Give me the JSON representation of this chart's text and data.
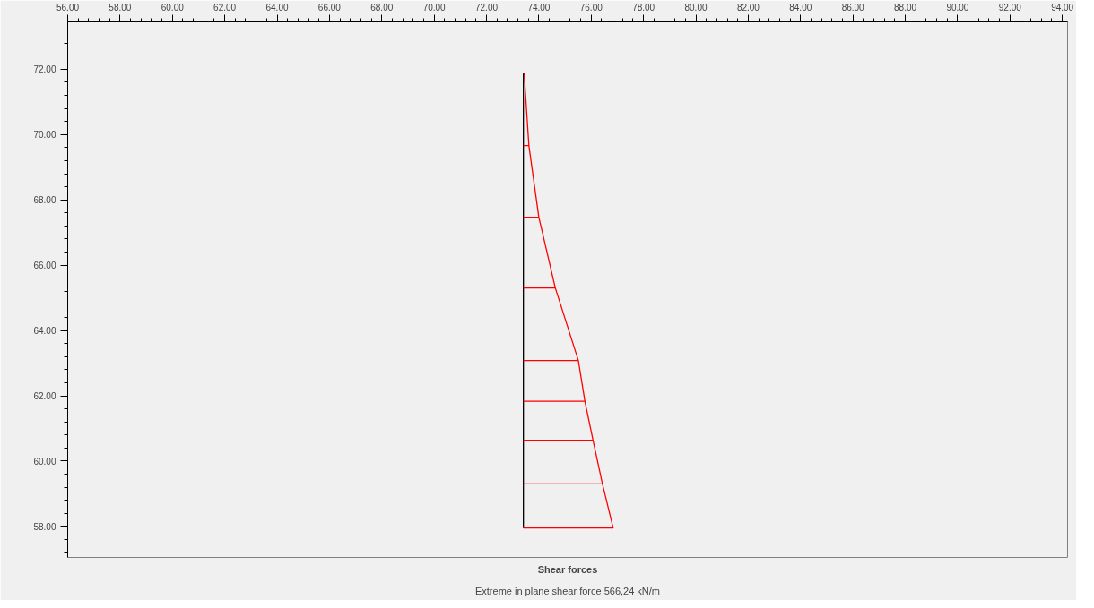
{
  "chart_data": {
    "type": "line",
    "title": "Shear forces",
    "subtitle": "Extreme in plane shear force 566,24 kN/m",
    "xlim": [
      56.0,
      94.2
    ],
    "ylim": [
      57.05,
      73.45
    ],
    "xticks": [
      {
        "value": 56,
        "label": "56.00"
      },
      {
        "value": 58,
        "label": "58.00"
      },
      {
        "value": 60,
        "label": "60.00"
      },
      {
        "value": 62,
        "label": "62.00"
      },
      {
        "value": 64,
        "label": "64.00"
      },
      {
        "value": 66,
        "label": "66.00"
      },
      {
        "value": 68,
        "label": "68.00"
      },
      {
        "value": 70,
        "label": "70.00"
      },
      {
        "value": 72,
        "label": "72.00"
      },
      {
        "value": 74,
        "label": "74.00"
      },
      {
        "value": 76,
        "label": "76.00"
      },
      {
        "value": 78,
        "label": "78.00"
      },
      {
        "value": 80,
        "label": "80.00"
      },
      {
        "value": 82,
        "label": "82.00"
      },
      {
        "value": 84,
        "label": "84.00"
      },
      {
        "value": 86,
        "label": "86.00"
      },
      {
        "value": 88,
        "label": "88.00"
      },
      {
        "value": 90,
        "label": "90.00"
      },
      {
        "value": 92,
        "label": "92.00"
      },
      {
        "value": 94,
        "label": "94.00"
      }
    ],
    "yticks": [
      {
        "value": 58,
        "label": "58.00"
      },
      {
        "value": 60,
        "label": "60.00"
      },
      {
        "value": 62,
        "label": "62.00"
      },
      {
        "value": 64,
        "label": "64.00"
      },
      {
        "value": 66,
        "label": "66.00"
      },
      {
        "value": 68,
        "label": "68.00"
      },
      {
        "value": 70,
        "label": "70.00"
      },
      {
        "value": 72,
        "label": "72.00"
      }
    ],
    "grid": false,
    "marker": "none",
    "line_style": "solid",
    "series": [
      {
        "color": "#000000",
        "x": [
          73.41,
          73.41
        ],
        "values": [
          57.95,
          71.87
        ]
      },
      {
        "color": "#ff0000",
        "x": [
          73.41,
          73.44,
          73.62,
          74.0,
          74.63,
          75.51,
          75.76,
          76.07,
          76.43,
          76.84,
          73.41
        ],
        "values": [
          71.87,
          71.87,
          69.66,
          67.47,
          65.3,
          63.08,
          61.83,
          60.64,
          59.3,
          57.95,
          57.95
        ]
      },
      {
        "color": "#ff0000",
        "x": [
          73.41,
          73.62,
          null,
          73.41,
          74.0,
          null,
          73.41,
          74.63,
          null,
          73.41,
          75.51,
          null,
          73.41,
          75.76,
          null,
          73.41,
          76.07,
          null,
          73.41,
          76.43
        ],
        "values": [
          69.66,
          69.66,
          null,
          67.47,
          67.47,
          null,
          65.3,
          65.3,
          null,
          63.08,
          63.08,
          null,
          61.83,
          61.83,
          null,
          60.64,
          60.64,
          null,
          59.3,
          59.3
        ]
      }
    ]
  }
}
